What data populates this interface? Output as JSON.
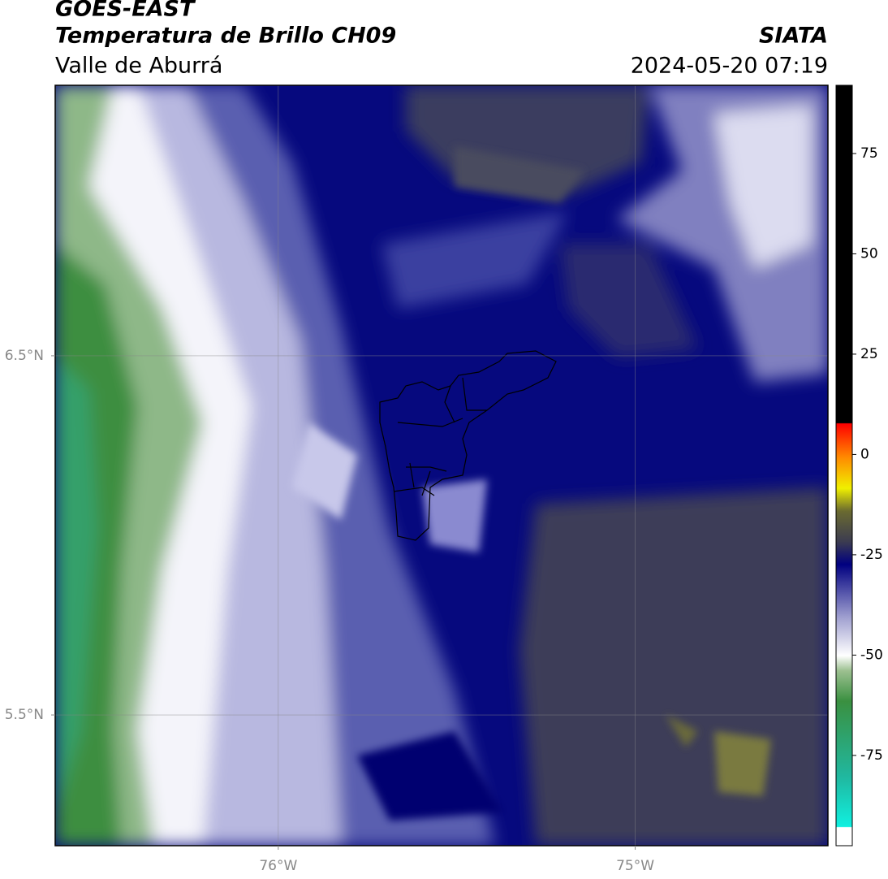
{
  "header": {
    "title": "GOES-EAST",
    "subtitle": "Temperatura de Brillo CH09",
    "region": "Valle de Aburrá",
    "source": "SIATA",
    "datetime": "2024-05-20 07:19"
  },
  "map": {
    "xlim": [
      -76.625,
      -74.46
    ],
    "ylim": [
      5.136,
      7.253
    ],
    "xticks": [
      {
        "value": -76,
        "label": "76°W"
      },
      {
        "value": -75,
        "label": "75°W"
      }
    ],
    "yticks": [
      {
        "value": 6.5,
        "label": "6.5°N"
      },
      {
        "value": 5.5,
        "label": "5.5°N"
      }
    ],
    "grid": true
  },
  "colorbar": {
    "lim": [
      -97.5,
      92
    ],
    "ticks": [
      75,
      50,
      25,
      0,
      -25,
      -50,
      -75
    ]
  }
}
